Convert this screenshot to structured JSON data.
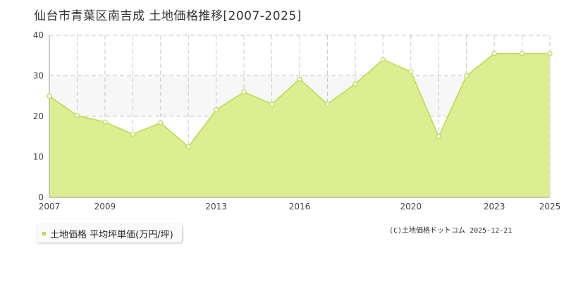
{
  "title": "仙台市青葉区南吉成 土地価格推移[2007-2025]",
  "legend_label": "土地価格 平均坪単価(万円/坪)",
  "credit": "(C)土地価格ドットコム 2025-12-21",
  "colors": {
    "fill": "#dcee91",
    "line": "#b8dc4a",
    "grid": "#c8c8c8",
    "band": "#f7f7f7",
    "axis": "#999999"
  },
  "chart_data": {
    "type": "area",
    "title": "仙台市青葉区南吉成 土地価格推移[2007-2025]",
    "xlabel": "",
    "ylabel": "",
    "x": [
      2007,
      2008,
      2009,
      2010,
      2011,
      2012,
      2013,
      2014,
      2015,
      2016,
      2017,
      2018,
      2019,
      2020,
      2021,
      2022,
      2023,
      2024,
      2025
    ],
    "series": [
      {
        "name": "土地価格 平均坪単価(万円/坪)",
        "values": [
          25,
          20.2,
          18.6,
          15.6,
          18.4,
          12.5,
          21.6,
          26,
          23,
          29.2,
          23,
          28,
          34,
          31,
          15,
          30,
          35.5,
          35.5,
          35.5
        ]
      }
    ],
    "x_ticks": [
      2007,
      2009,
      2013,
      2016,
      2020,
      2023,
      2025
    ],
    "y_ticks": [
      0,
      10,
      20,
      30,
      40
    ],
    "ylim": [
      0,
      40
    ],
    "xlim": [
      2007,
      2025
    ],
    "grid": true,
    "legend": "bottom-left"
  }
}
